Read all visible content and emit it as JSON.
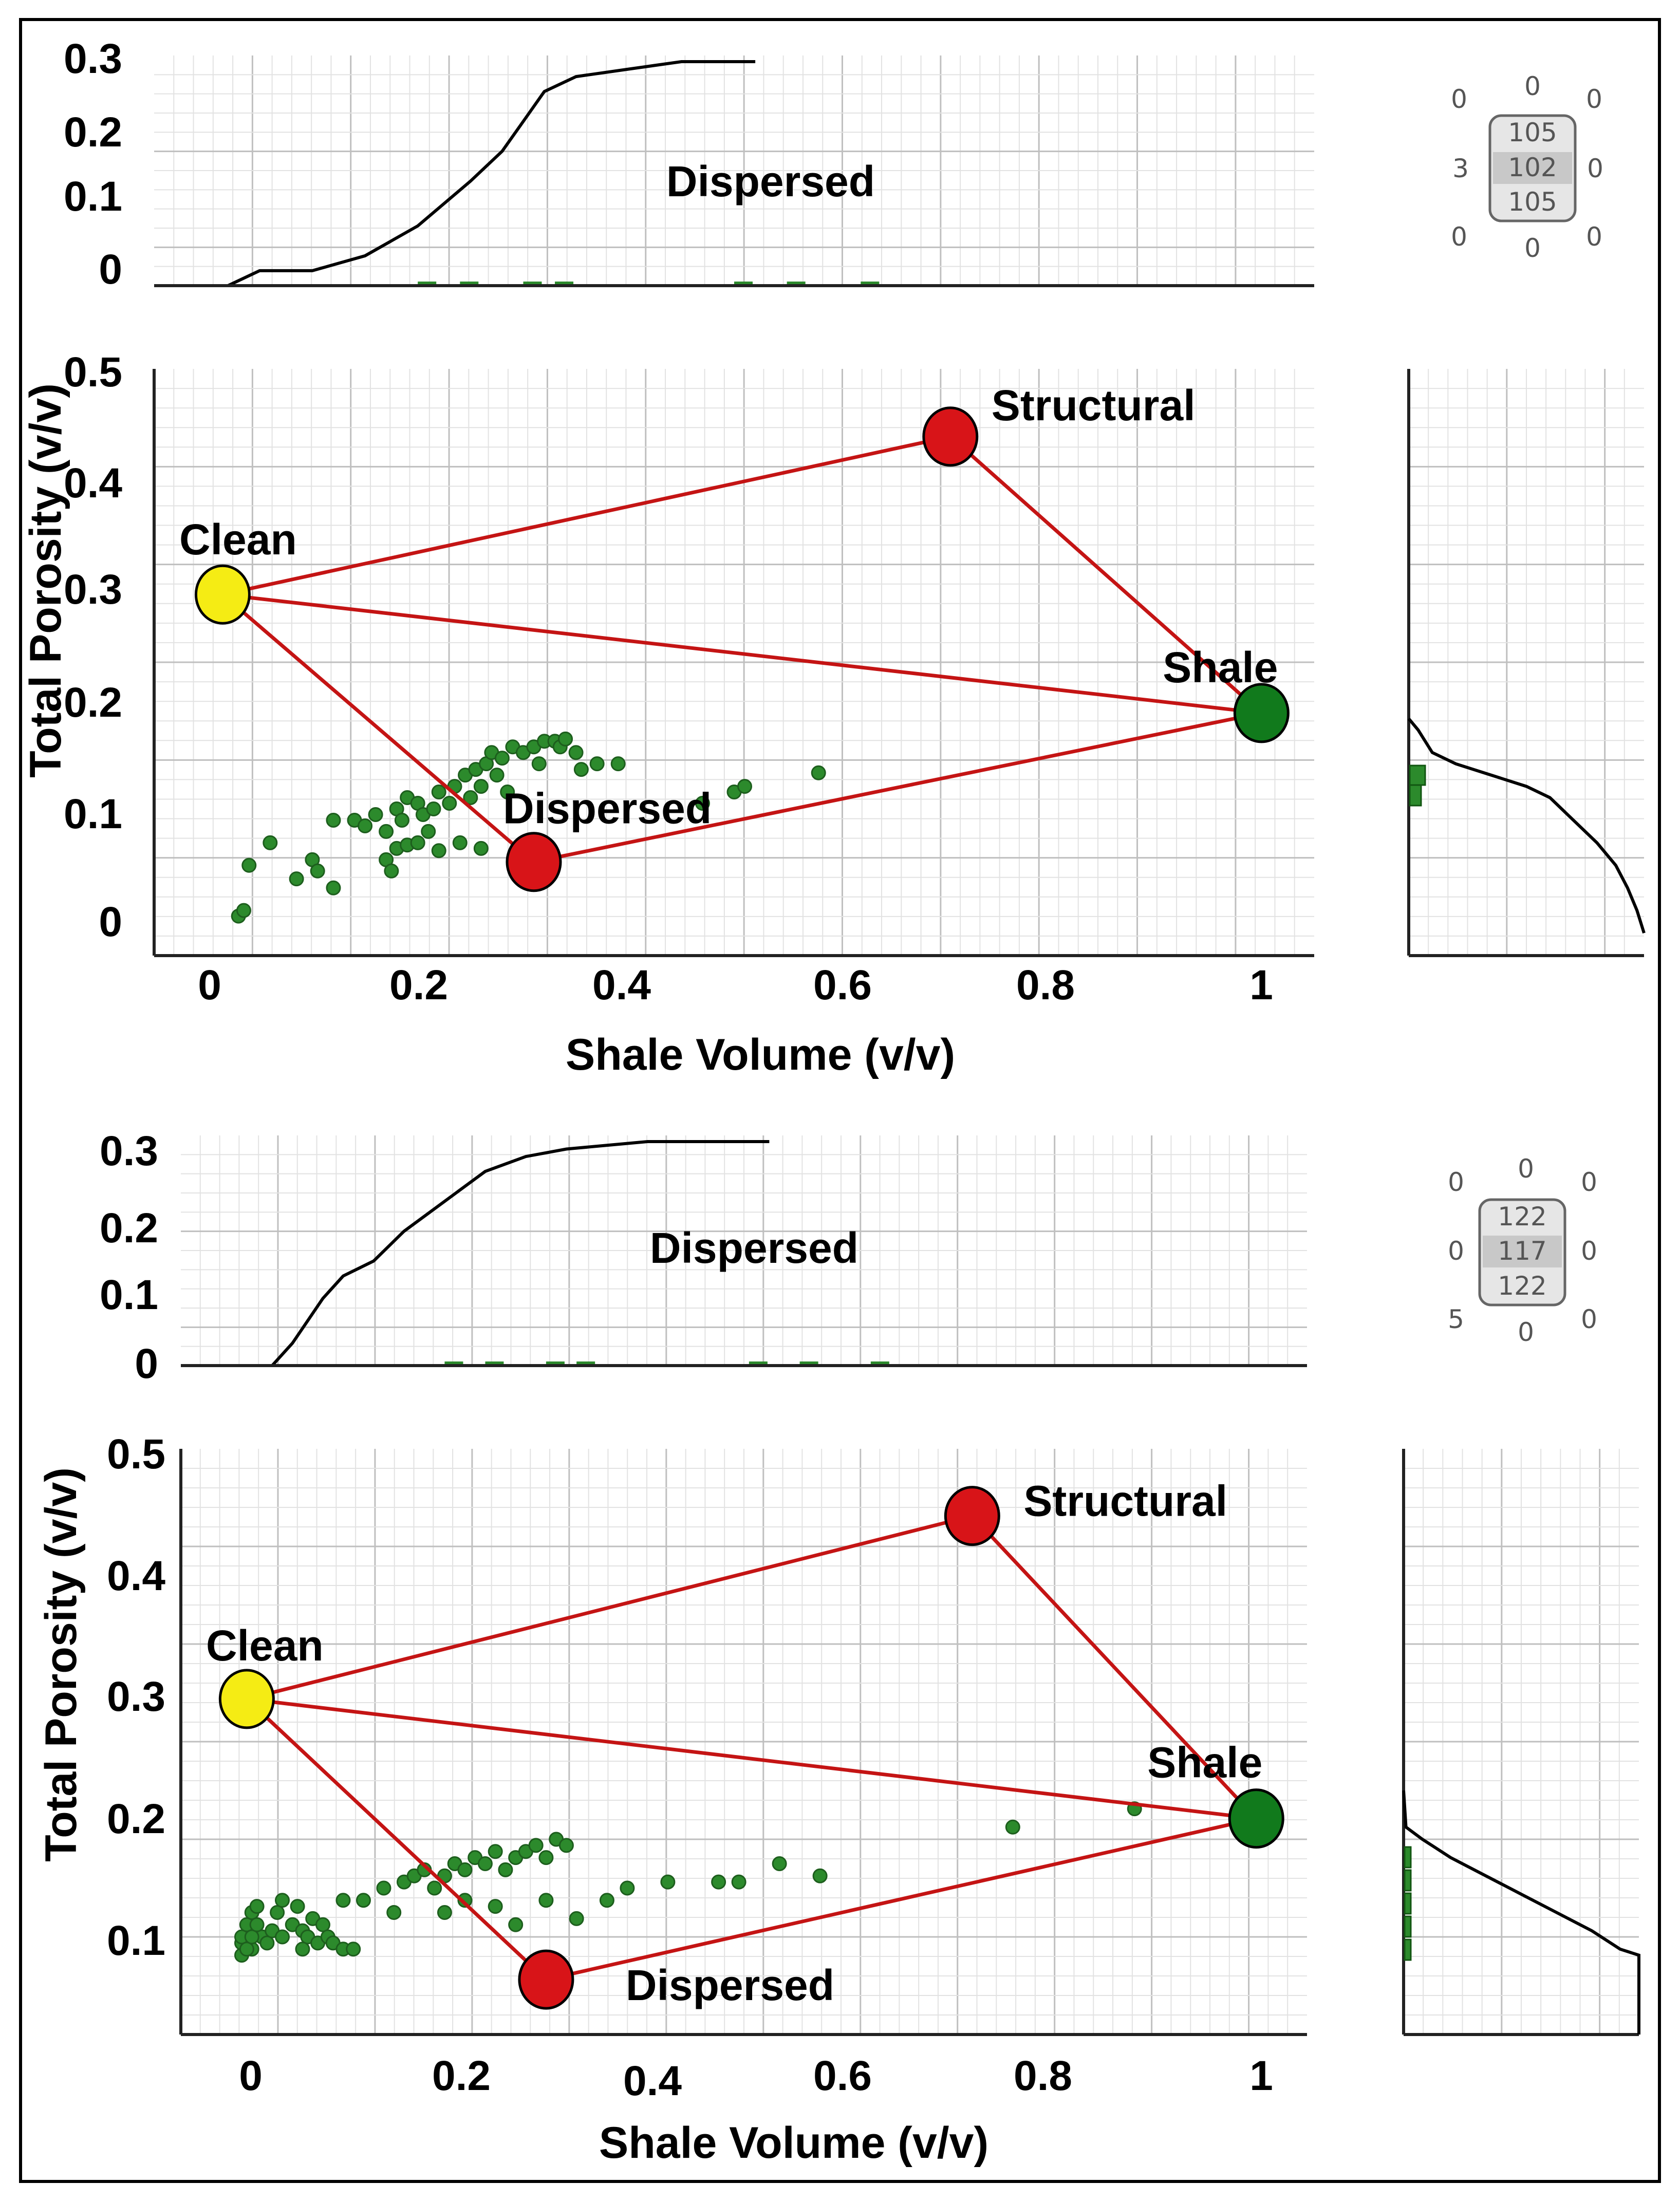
{
  "colors": {
    "line": "#c41414",
    "clean": "#f5ec14",
    "dispersed": "#d81418",
    "structural": "#d81418",
    "shale": "#117a1c",
    "points": "#2c8a2c",
    "curve": "#000000"
  },
  "panels": [
    {
      "top_hist": {
        "title": "Dispersed",
        "y_ticks": [
          "0.3",
          "0.2",
          "0.1",
          "0"
        ],
        "cdf": [
          [
            0.02,
            0.0
          ],
          [
            0.05,
            0.02
          ],
          [
            0.1,
            0.02
          ],
          [
            0.15,
            0.04
          ],
          [
            0.2,
            0.08
          ],
          [
            0.25,
            0.14
          ],
          [
            0.28,
            0.18
          ],
          [
            0.3,
            0.22
          ],
          [
            0.32,
            0.26
          ],
          [
            0.35,
            0.28
          ],
          [
            0.4,
            0.29
          ],
          [
            0.45,
            0.3
          ],
          [
            0.52,
            0.3
          ]
        ]
      },
      "matrix": {
        "top": [
          "0",
          "0",
          "0"
        ],
        "middle_left": "3",
        "middle_right": "0",
        "bottom": [
          "0",
          "0",
          "0"
        ],
        "center": [
          "105",
          "102",
          "105"
        ]
      },
      "chart_data": {
        "type": "scatter",
        "xlabel": "Shale Volume (v/v)",
        "ylabel": "Total Porosity (v/v)",
        "xlim": [
          -0.05,
          1.05
        ],
        "ylim": [
          -0.02,
          0.5
        ],
        "x_ticks": [
          "0",
          "0.2",
          "0.4",
          "0.6",
          "0.8",
          "1"
        ],
        "y_ticks": [
          "0.5",
          "0.4",
          "0.3",
          "0.2",
          "0.1",
          "0"
        ],
        "endpoints": [
          {
            "name": "Clean",
            "label": "Clean",
            "x": 0.015,
            "y": 0.3
          },
          {
            "name": "Dispersed",
            "label": "Dispersed",
            "x": 0.31,
            "y": 0.063
          },
          {
            "name": "Structural",
            "label": "Structural",
            "x": 0.705,
            "y": 0.44
          },
          {
            "name": "Shale",
            "label": "Shale",
            "x": 1.0,
            "y": 0.195
          }
        ],
        "points": [
          [
            0.03,
            0.015
          ],
          [
            0.035,
            0.02
          ],
          [
            0.04,
            0.06
          ],
          [
            0.06,
            0.08
          ],
          [
            0.085,
            0.048
          ],
          [
            0.1,
            0.065
          ],
          [
            0.105,
            0.055
          ],
          [
            0.12,
            0.04
          ],
          [
            0.12,
            0.1
          ],
          [
            0.14,
            0.1
          ],
          [
            0.15,
            0.095
          ],
          [
            0.16,
            0.105
          ],
          [
            0.17,
            0.09
          ],
          [
            0.17,
            0.065
          ],
          [
            0.175,
            0.055
          ],
          [
            0.18,
            0.11
          ],
          [
            0.185,
            0.1
          ],
          [
            0.19,
            0.12
          ],
          [
            0.2,
            0.115
          ],
          [
            0.205,
            0.105
          ],
          [
            0.21,
            0.09
          ],
          [
            0.215,
            0.11
          ],
          [
            0.22,
            0.125
          ],
          [
            0.23,
            0.115
          ],
          [
            0.235,
            0.13
          ],
          [
            0.24,
            0.08
          ],
          [
            0.245,
            0.14
          ],
          [
            0.25,
            0.12
          ],
          [
            0.255,
            0.145
          ],
          [
            0.26,
            0.13
          ],
          [
            0.265,
            0.15
          ],
          [
            0.27,
            0.16
          ],
          [
            0.275,
            0.14
          ],
          [
            0.28,
            0.155
          ],
          [
            0.285,
            0.125
          ],
          [
            0.29,
            0.165
          ],
          [
            0.3,
            0.16
          ],
          [
            0.31,
            0.165
          ],
          [
            0.315,
            0.15
          ],
          [
            0.32,
            0.17
          ],
          [
            0.33,
            0.17
          ],
          [
            0.335,
            0.165
          ],
          [
            0.34,
            0.172
          ],
          [
            0.35,
            0.16
          ],
          [
            0.355,
            0.145
          ],
          [
            0.37,
            0.15
          ],
          [
            0.39,
            0.15
          ],
          [
            0.47,
            0.115
          ],
          [
            0.5,
            0.125
          ],
          [
            0.51,
            0.13
          ],
          [
            0.58,
            0.142
          ],
          [
            0.18,
            0.075
          ],
          [
            0.19,
            0.078
          ],
          [
            0.2,
            0.08
          ],
          [
            0.22,
            0.073
          ],
          [
            0.26,
            0.075
          ]
        ]
      },
      "side_hist": {
        "cdf": [
          [
            0.0,
            0.19
          ],
          [
            0.04,
            0.18
          ],
          [
            0.1,
            0.16
          ],
          [
            0.2,
            0.15
          ],
          [
            0.35,
            0.14
          ],
          [
            0.5,
            0.13
          ],
          [
            0.6,
            0.12
          ],
          [
            0.7,
            0.1
          ],
          [
            0.8,
            0.08
          ],
          [
            0.88,
            0.06
          ],
          [
            0.93,
            0.04
          ],
          [
            0.97,
            0.02
          ],
          [
            1.0,
            0.0
          ]
        ]
      }
    },
    {
      "top_hist": {
        "title": "Dispersed",
        "y_ticks": [
          "0.3",
          "0.2",
          "0.1",
          "0"
        ],
        "cdf": [
          [
            0.02,
            0.0
          ],
          [
            0.03,
            0.0
          ],
          [
            0.05,
            0.03
          ],
          [
            0.08,
            0.09
          ],
          [
            0.1,
            0.12
          ],
          [
            0.13,
            0.14
          ],
          [
            0.16,
            0.18
          ],
          [
            0.2,
            0.22
          ],
          [
            0.24,
            0.26
          ],
          [
            0.28,
            0.28
          ],
          [
            0.32,
            0.29
          ],
          [
            0.4,
            0.3
          ],
          [
            0.48,
            0.3
          ],
          [
            0.52,
            0.3
          ]
        ]
      },
      "matrix": {
        "top": [
          "0",
          "0",
          "0"
        ],
        "middle_left": "0",
        "middle_right": "0",
        "bottom": [
          "5",
          "0",
          "0"
        ],
        "center": [
          "122",
          "117",
          "122"
        ]
      },
      "chart_data": {
        "type": "scatter",
        "xlabel": "Shale Volume (v/v)",
        "ylabel": "Total Porosity (v/v)",
        "xlim": [
          -0.06,
          1.05
        ],
        "ylim": [
          0.02,
          0.5
        ],
        "x_ticks": [
          "0",
          "0.2",
          "0.4",
          "0.6",
          "0.8",
          "1"
        ],
        "y_ticks": [
          "0.5",
          "0.4",
          "0.3",
          "0.2",
          "0.1"
        ],
        "endpoints": [
          {
            "name": "Clean",
            "label": "Clean",
            "x": 0.005,
            "y": 0.295
          },
          {
            "name": "Dispersed",
            "label": "Dispersed",
            "x": 0.3,
            "y": 0.065
          },
          {
            "name": "Structural",
            "label": "Structural",
            "x": 0.72,
            "y": 0.445
          },
          {
            "name": "Shale",
            "label": "Shale",
            "x": 1.0,
            "y": 0.197
          }
        ],
        "points": [
          [
            0.0,
            0.085
          ],
          [
            0.0,
            0.095
          ],
          [
            0.0,
            0.1
          ],
          [
            0.005,
            0.11
          ],
          [
            0.01,
            0.12
          ],
          [
            0.01,
            0.09
          ],
          [
            0.015,
            0.125
          ],
          [
            0.02,
            0.1
          ],
          [
            0.025,
            0.095
          ],
          [
            0.03,
            0.105
          ],
          [
            0.035,
            0.12
          ],
          [
            0.04,
            0.13
          ],
          [
            0.04,
            0.1
          ],
          [
            0.05,
            0.11
          ],
          [
            0.055,
            0.125
          ],
          [
            0.06,
            0.105
          ],
          [
            0.065,
            0.1
          ],
          [
            0.07,
            0.115
          ],
          [
            0.075,
            0.095
          ],
          [
            0.08,
            0.11
          ],
          [
            0.085,
            0.1
          ],
          [
            0.09,
            0.095
          ],
          [
            0.1,
            0.09
          ],
          [
            0.1,
            0.13
          ],
          [
            0.12,
            0.13
          ],
          [
            0.14,
            0.14
          ],
          [
            0.15,
            0.12
          ],
          [
            0.16,
            0.145
          ],
          [
            0.17,
            0.15
          ],
          [
            0.18,
            0.155
          ],
          [
            0.19,
            0.14
          ],
          [
            0.2,
            0.15
          ],
          [
            0.21,
            0.16
          ],
          [
            0.22,
            0.155
          ],
          [
            0.23,
            0.165
          ],
          [
            0.24,
            0.16
          ],
          [
            0.25,
            0.17
          ],
          [
            0.26,
            0.155
          ],
          [
            0.27,
            0.165
          ],
          [
            0.28,
            0.17
          ],
          [
            0.29,
            0.175
          ],
          [
            0.3,
            0.165
          ],
          [
            0.31,
            0.18
          ],
          [
            0.32,
            0.175
          ],
          [
            0.2,
            0.12
          ],
          [
            0.22,
            0.13
          ],
          [
            0.25,
            0.125
          ],
          [
            0.27,
            0.11
          ],
          [
            0.3,
            0.13
          ],
          [
            0.33,
            0.115
          ],
          [
            0.36,
            0.13
          ],
          [
            0.38,
            0.14
          ],
          [
            0.42,
            0.145
          ],
          [
            0.47,
            0.145
          ],
          [
            0.49,
            0.145
          ],
          [
            0.53,
            0.16
          ],
          [
            0.57,
            0.15
          ],
          [
            0.76,
            0.19
          ],
          [
            0.88,
            0.205
          ],
          [
            0.005,
            0.09
          ],
          [
            0.01,
            0.1
          ],
          [
            0.015,
            0.11
          ],
          [
            0.06,
            0.09
          ],
          [
            0.11,
            0.09
          ]
        ]
      },
      "side_hist": {
        "cdf": [
          [
            0.0,
            0.22
          ],
          [
            0.01,
            0.19
          ],
          [
            0.08,
            0.18
          ],
          [
            0.2,
            0.165
          ],
          [
            0.35,
            0.15
          ],
          [
            0.5,
            0.135
          ],
          [
            0.65,
            0.12
          ],
          [
            0.8,
            0.105
          ],
          [
            0.92,
            0.09
          ],
          [
            1.0,
            0.085
          ],
          [
            1.0,
            0.0
          ]
        ]
      }
    }
  ]
}
